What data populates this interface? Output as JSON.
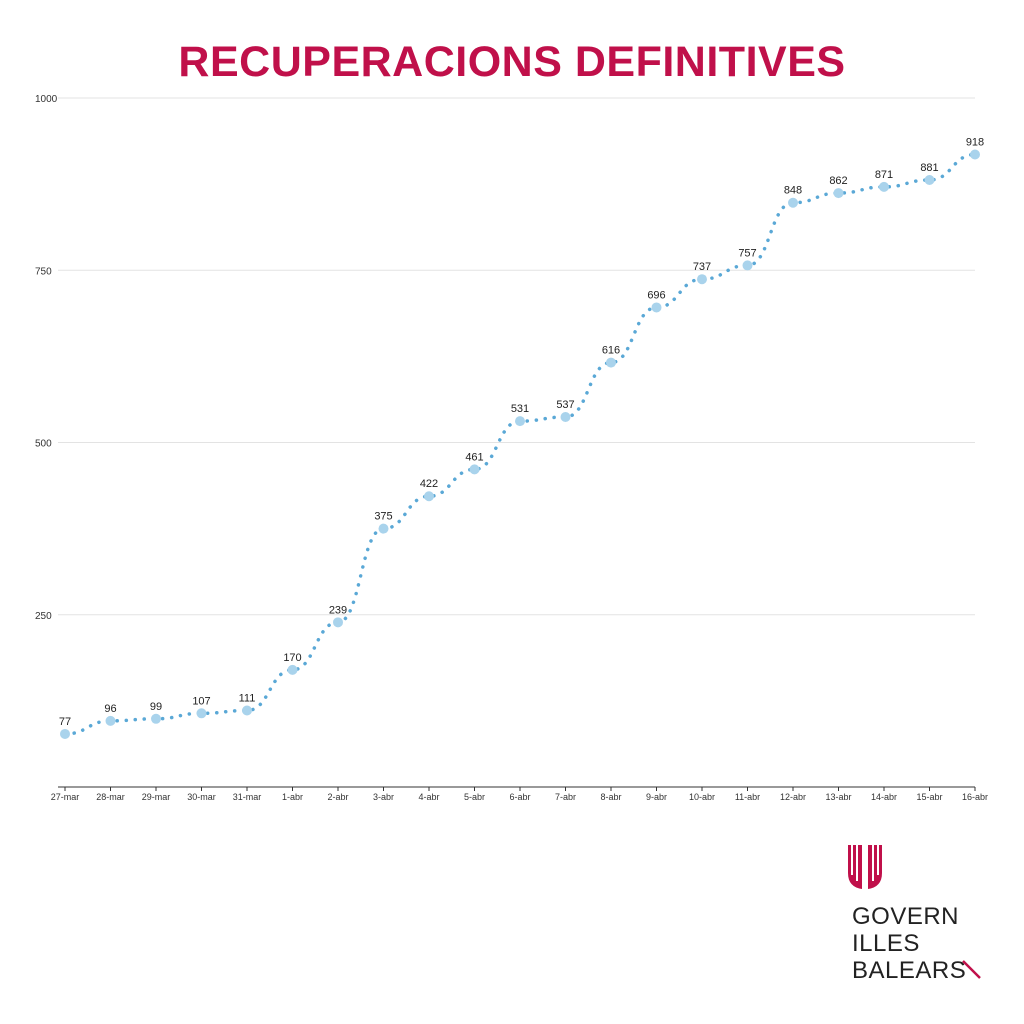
{
  "colors": {
    "title": "#c0104a",
    "series": "#5aa8d6",
    "marker": "#a9d3ec",
    "grid": "#e3e3e3",
    "axis": "#333333",
    "logo": "#c0104a"
  },
  "logo": {
    "icon": "balearic-government-emblem-icon",
    "line1": "GOVERN",
    "line2": "ILLES",
    "line3": "BALEARS"
  },
  "chart_data": {
    "type": "line",
    "title": "RECUPERACIONS DEFINITIVES",
    "xlabel": "",
    "ylabel": "",
    "ylim": [
      0,
      1000
    ],
    "yticks": [
      250,
      500,
      750,
      1000
    ],
    "grid": true,
    "legend": "none",
    "line_style": "dotted",
    "categories": [
      "27-mar",
      "28-mar",
      "29-mar",
      "30-mar",
      "31-mar",
      "1-abr",
      "2-abr",
      "3-abr",
      "4-abr",
      "5-abr",
      "6-abr",
      "7-abr",
      "8-abr",
      "9-abr",
      "10-abr",
      "11-abr",
      "12-abr",
      "13-abr",
      "14-abr",
      "15-abr",
      "16-abr"
    ],
    "series": [
      {
        "values": [
          77,
          96,
          99,
          107,
          111,
          170,
          239,
          375,
          422,
          461,
          531,
          537,
          616,
          696,
          737,
          757,
          848,
          862,
          871,
          881,
          918
        ]
      }
    ]
  }
}
